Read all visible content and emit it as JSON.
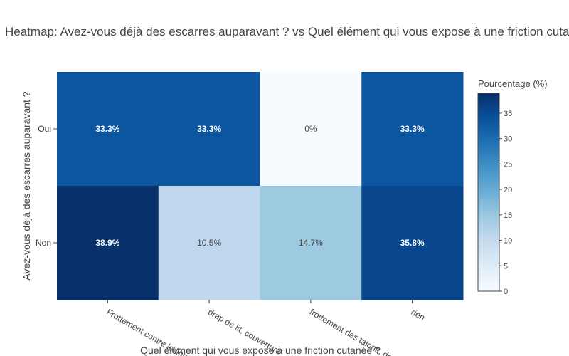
{
  "chart_data": {
    "type": "heatmap",
    "title": "Heatmap: Avez-vous déjà des escarres auparavant ? vs Quel élément qui vous expose à une friction cutanée ? (%)",
    "xlabel": "Quel élément qui vous expose à une friction cutanée ?",
    "ylabel": "Avez-vous déjà des escarres auparavant ?",
    "x_categories": [
      "Frottement contre le linge",
      "drap de lit, couverture",
      "frottement des talons, dos",
      "rien"
    ],
    "y_categories": [
      "Oui",
      "Non"
    ],
    "values": [
      [
        33.3,
        33.3,
        0,
        33.3
      ],
      [
        38.9,
        10.5,
        14.7,
        35.8
      ]
    ],
    "cell_labels": [
      [
        "33.3%",
        "33.3%",
        "0%",
        "33.3%"
      ],
      [
        "38.9%",
        "10.5%",
        "14.7%",
        "35.8%"
      ]
    ],
    "colorscale": "Blues",
    "colorbar": {
      "title": "Pourcentage (%)",
      "range": [
        0,
        38.9
      ],
      "ticks": [
        0,
        5,
        10,
        15,
        20,
        25,
        30,
        35
      ]
    }
  }
}
